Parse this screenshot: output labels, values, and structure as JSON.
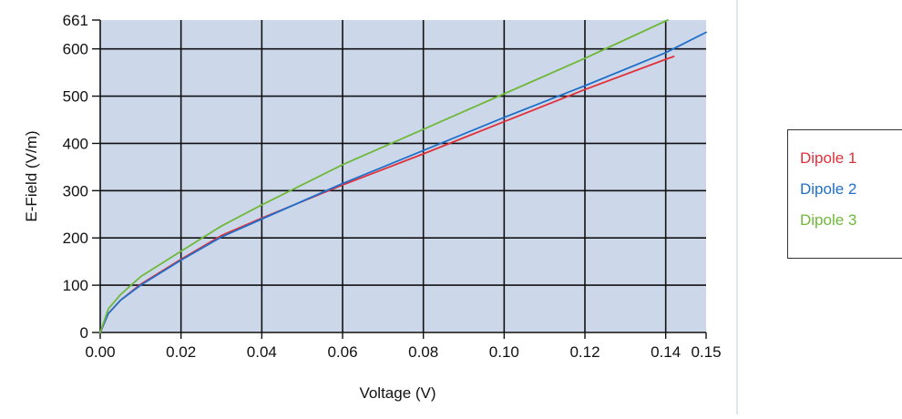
{
  "chart_data": {
    "type": "line",
    "xlabel": "Voltage (V)",
    "ylabel": "E-Field (V/m)",
    "xlim": [
      0,
      0.15
    ],
    "ylim": [
      0,
      661
    ],
    "x_ticks": [
      "0.00",
      "0.02",
      "0.04",
      "0.06",
      "0.08",
      "0.10",
      "0.12",
      "0.14",
      "0.15"
    ],
    "y_ticks": [
      "0",
      "100",
      "200",
      "300",
      "400",
      "500",
      "600",
      "661"
    ],
    "grid": true,
    "plot_background": "#ccd8ea",
    "legend_position": "right",
    "series": [
      {
        "name": "Dipole 1",
        "color": "#e0303a",
        "x": [
          0.0,
          0.002,
          0.005,
          0.01,
          0.02,
          0.03,
          0.04,
          0.06,
          0.08,
          0.1,
          0.12,
          0.14,
          0.142
        ],
        "y": [
          0,
          40,
          68,
          102,
          155,
          205,
          242,
          312,
          378,
          446,
          514,
          578,
          584
        ]
      },
      {
        "name": "Dipole 2",
        "color": "#1f6fc9",
        "x": [
          0.0,
          0.002,
          0.005,
          0.01,
          0.02,
          0.03,
          0.04,
          0.06,
          0.08,
          0.1,
          0.12,
          0.14,
          0.15
        ],
        "y": [
          0,
          40,
          68,
          100,
          153,
          202,
          240,
          315,
          385,
          455,
          522,
          592,
          635
        ]
      },
      {
        "name": "Dipole 3",
        "color": "#6fb83a",
        "x": [
          0.0,
          0.002,
          0.005,
          0.01,
          0.02,
          0.03,
          0.04,
          0.06,
          0.08,
          0.1,
          0.12,
          0.14,
          0.1405
        ],
        "y": [
          0,
          50,
          80,
          118,
          172,
          225,
          270,
          355,
          430,
          505,
          580,
          659,
          661
        ]
      }
    ]
  }
}
